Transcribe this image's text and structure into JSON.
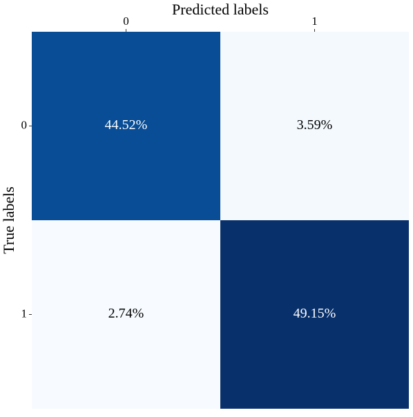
{
  "chart_data": {
    "type": "heatmap",
    "xlabel": "Predicted labels",
    "ylabel": "True labels",
    "x_categories": [
      "0",
      "1"
    ],
    "y_categories": [
      "0",
      "1"
    ],
    "values": [
      [
        44.52,
        3.59
      ],
      [
        2.74,
        49.15
      ]
    ],
    "value_labels": [
      [
        "44.52%",
        "3.59%"
      ],
      [
        "2.74%",
        "49.15%"
      ]
    ],
    "colors": [
      [
        "#084d95",
        "#f4f9fe"
      ],
      [
        "#f7fbff",
        "#08306b"
      ]
    ],
    "x_axis_position": "top"
  }
}
